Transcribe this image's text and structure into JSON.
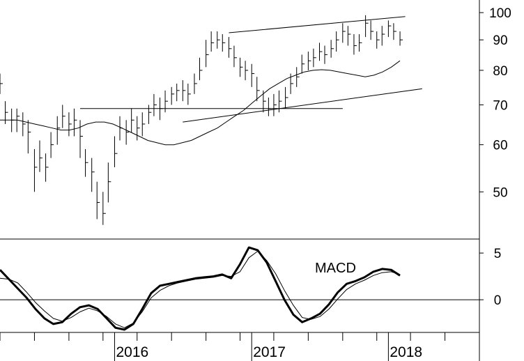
{
  "chart_data": [
    {
      "type": "ohlc",
      "scale": "log",
      "ylim": [
        42,
        105
      ],
      "y_ticks": [
        50,
        60,
        70,
        80,
        90,
        100
      ],
      "x": [
        "2015-03-01",
        "2015-03-15",
        "2015-04-01",
        "2015-04-15",
        "2015-05-01",
        "2015-05-15",
        "2015-06-01",
        "2015-06-15",
        "2015-07-01",
        "2015-07-15",
        "2015-08-01",
        "2015-08-15",
        "2015-09-01",
        "2015-09-15",
        "2015-10-01",
        "2015-10-15",
        "2015-11-01",
        "2015-11-15",
        "2015-12-01",
        "2015-12-15",
        "2016-01-01",
        "2016-01-15",
        "2016-02-01",
        "2016-02-15",
        "2016-03-01",
        "2016-03-15",
        "2016-04-01",
        "2016-04-15",
        "2016-05-01",
        "2016-05-15",
        "2016-06-01",
        "2016-06-15",
        "2016-07-01",
        "2016-07-15",
        "2016-08-01",
        "2016-08-15",
        "2016-09-01",
        "2016-09-15",
        "2016-10-01",
        "2016-10-15",
        "2016-11-01",
        "2016-11-15",
        "2016-12-01",
        "2016-12-15",
        "2017-01-01",
        "2017-01-15",
        "2017-02-01",
        "2017-02-15",
        "2017-03-01",
        "2017-03-15",
        "2017-04-01",
        "2017-04-15",
        "2017-05-01",
        "2017-05-15",
        "2017-06-01",
        "2017-06-15",
        "2017-07-01",
        "2017-07-15",
        "2017-08-01",
        "2017-08-15",
        "2017-09-01",
        "2017-09-15",
        "2017-10-01",
        "2017-10-15",
        "2017-11-01",
        "2017-11-15",
        "2017-12-01",
        "2017-12-15",
        "2018-01-01",
        "2018-01-15",
        "2018-02-01"
      ],
      "close": [
        76,
        68,
        66,
        67,
        65,
        63,
        55,
        57,
        55,
        60,
        64,
        67,
        65,
        66,
        62,
        56,
        54,
        48,
        46,
        52,
        58,
        64,
        63,
        66,
        64,
        65,
        68,
        70,
        69,
        71,
        73,
        74,
        74,
        73,
        76,
        80,
        85,
        89,
        90,
        89,
        87,
        84,
        81,
        80,
        79,
        74,
        71,
        69,
        70,
        71,
        72,
        76,
        78,
        82,
        83,
        84,
        86,
        85,
        87,
        90,
        93,
        92,
        88,
        89,
        96,
        93,
        90,
        92,
        95,
        93,
        90
      ],
      "high": [
        79,
        71,
        69,
        69,
        68,
        66,
        59,
        61,
        58,
        63,
        67,
        70,
        68,
        69,
        66,
        59,
        57,
        52,
        50,
        56,
        62,
        67,
        66,
        69,
        67,
        68,
        70,
        73,
        72,
        74,
        75,
        76,
        77,
        76,
        79,
        84,
        90,
        93,
        93,
        92,
        91,
        88,
        84,
        83,
        82,
        78,
        74,
        72,
        73,
        74,
        75,
        79,
        81,
        85,
        86,
        87,
        89,
        88,
        90,
        93,
        96,
        95,
        92,
        92,
        99,
        97,
        93,
        95,
        97,
        96,
        93
      ],
      "low": [
        73,
        65,
        63,
        63,
        62,
        58,
        50,
        54,
        52,
        57,
        60,
        64,
        62,
        62,
        57,
        53,
        50,
        45,
        44,
        48,
        55,
        61,
        60,
        63,
        61,
        62,
        65,
        67,
        66,
        68,
        70,
        71,
        71,
        70,
        73,
        77,
        81,
        86,
        87,
        86,
        84,
        81,
        78,
        77,
        75,
        71,
        68,
        67,
        67,
        68,
        69,
        73,
        75,
        79,
        80,
        81,
        83,
        82,
        84,
        86,
        89,
        88,
        85,
        86,
        91,
        90,
        87,
        88,
        91,
        90,
        88
      ],
      "moving_average": [
        66,
        66,
        66,
        65.5,
        65,
        64.5,
        64,
        63.5,
        63.5,
        64,
        65,
        65.5,
        65.5,
        65,
        64,
        63,
        62,
        61,
        60.5,
        60,
        60,
        60.5,
        61,
        62,
        63,
        64,
        65.5,
        67,
        68.5,
        70.5,
        72.5,
        74.5,
        76,
        77.5,
        78.5,
        79.5,
        80,
        80.2,
        80,
        79.5,
        79,
        78.5,
        78,
        78.5,
        79.5,
        81,
        83
      ],
      "moving_average_x_start": "2015-03-01",
      "trendlines": [
        {
          "from": [
            "2016-11-01",
            92.5
          ],
          "to": [
            "2018-02-15",
            98.5
          ]
        },
        {
          "from": [
            "2015-10-01",
            69.0
          ],
          "to": [
            "2017-09-01",
            69.0
          ]
        },
        {
          "from": [
            "2016-07-01",
            65.5
          ],
          "to": [
            "2018-04-01",
            74.5
          ]
        }
      ]
    },
    {
      "type": "line",
      "annotation": "MACD",
      "ylim": [
        -3.5,
        6.5
      ],
      "y_ticks": [
        5,
        0
      ],
      "zero_line": true,
      "series": [
        {
          "style": "thick",
          "values": [
            3.2,
            2.2,
            1.2,
            0.2,
            -1.0,
            -2.0,
            -2.6,
            -2.4,
            -1.5,
            -0.8,
            -0.6,
            -1.0,
            -2.0,
            -3.0,
            -3.2,
            -2.6,
            -1.0,
            0.7,
            1.5,
            1.7,
            1.9,
            2.1,
            2.3,
            2.4,
            2.5,
            2.7,
            2.3,
            3.8,
            5.6,
            5.3,
            4.0,
            2.0,
            0.0,
            -1.6,
            -2.4,
            -2.0,
            -1.5,
            -0.5,
            0.8,
            1.7,
            2.0,
            2.4,
            3.0,
            3.3,
            3.2,
            2.6
          ]
        },
        {
          "style": "thin",
          "values": [
            2.3,
            2.2,
            1.8,
            0.8,
            -0.3,
            -1.2,
            -2.0,
            -2.3,
            -1.9,
            -1.3,
            -0.9,
            -1.2,
            -1.8,
            -2.6,
            -3.0,
            -2.5,
            -1.3,
            0.2,
            1.0,
            1.5,
            1.8,
            2.0,
            2.2,
            2.3,
            2.4,
            2.6,
            2.5,
            3.0,
            4.5,
            5.2,
            4.2,
            2.8,
            1.0,
            -0.6,
            -1.9,
            -2.1,
            -1.8,
            -1.0,
            0.1,
            1.1,
            1.7,
            2.1,
            2.6,
            2.9,
            3.0,
            2.7
          ]
        }
      ],
      "x_start": "2015-03-01",
      "x_end": "2018-02-01"
    }
  ],
  "x_axis": {
    "range": [
      "2015-03-01",
      "2018-09-01"
    ],
    "labels": [
      "2016",
      "2017",
      "2018"
    ]
  }
}
